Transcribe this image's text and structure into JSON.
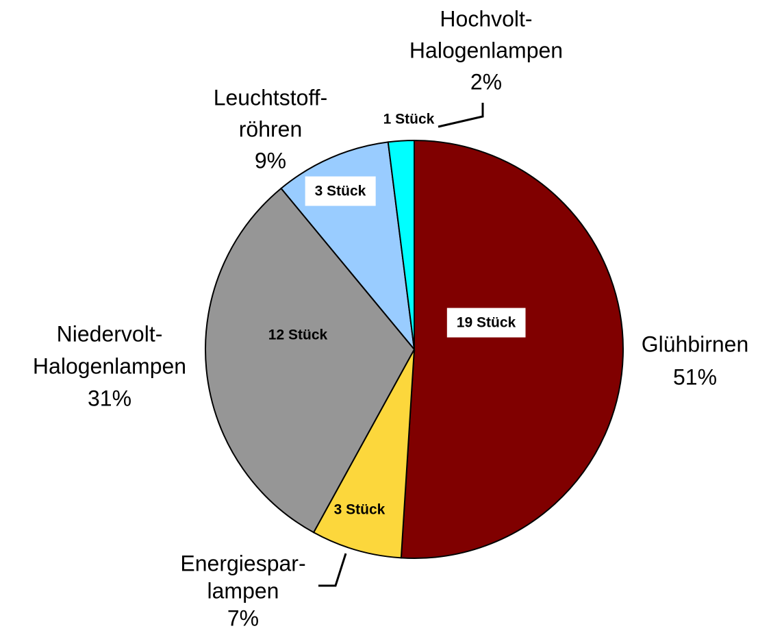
{
  "chart_data": {
    "type": "pie",
    "categories": [
      [
        "Glühbirnen"
      ],
      [
        "Energiespar-",
        "lampen"
      ],
      [
        "Niedervolt-",
        "Halogenlampen"
      ],
      [
        "Leuchtstoff-",
        "röhren"
      ],
      [
        "Hochvolt-",
        "Halogenlampen"
      ]
    ],
    "values": [
      51,
      7,
      31,
      9,
      2
    ],
    "value_labels": [
      "51%",
      "7%",
      "31%",
      "9%",
      "2%"
    ],
    "counts": [
      19,
      3,
      12,
      3,
      1
    ],
    "count_labels": [
      "19 Stück",
      "3 Stück",
      "12 Stück",
      "3 Stück",
      "1 Stück"
    ],
    "colors": [
      "#800000",
      "#fcd73c",
      "#969696",
      "#99ccff",
      "#00ffff"
    ]
  }
}
